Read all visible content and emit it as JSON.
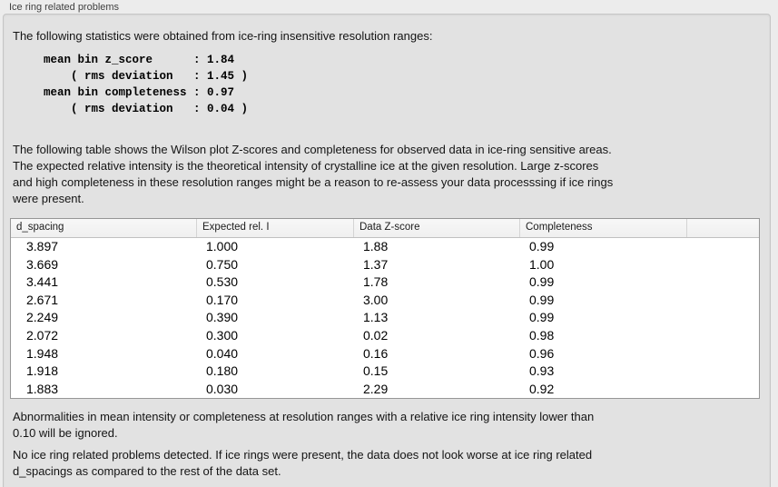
{
  "panel": {
    "title": "Ice ring related problems",
    "intro": "The following statistics were obtained from ice-ring insensitive resolution ranges:",
    "stats_block": "mean bin z_score      : 1.84\n    ( rms deviation   : 1.45 )\nmean bin completeness : 0.97\n    ( rms deviation   : 0.04 )",
    "table_note": "The following table shows the Wilson plot Z-scores and completeness for observed data in ice-ring sensitive areas.\nThe expected relative intensity is the theoretical intensity of crystalline ice at the given resolution. Large z-scores\nand high completeness in these resolution ranges might be a reason to re-assess your data processsing if ice rings\nwere present.",
    "ignore_note": "Abnormalities in mean intensity or completeness at resolution ranges with a relative ice ring intensity lower than\n0.10 will be ignored.",
    "conclusion": "No ice ring related problems detected. If ice rings were present, the data does not look worse at ice ring related\nd_spacings as compared to the rest of the data set."
  },
  "table": {
    "headers": [
      "d_spacing",
      "Expected rel. I",
      "Data Z-score",
      "Completeness",
      ""
    ],
    "rows": [
      [
        "3.897",
        "1.000",
        "1.88",
        "0.99"
      ],
      [
        "3.669",
        "0.750",
        "1.37",
        "1.00"
      ],
      [
        "3.441",
        "0.530",
        "1.78",
        "0.99"
      ],
      [
        "2.671",
        "0.170",
        "3.00",
        "0.99"
      ],
      [
        "2.249",
        "0.390",
        "1.13",
        "0.99"
      ],
      [
        "2.072",
        "0.300",
        "0.02",
        "0.98"
      ],
      [
        "1.948",
        "0.040",
        "0.16",
        "0.96"
      ],
      [
        "1.918",
        "0.180",
        "0.15",
        "0.93"
      ],
      [
        "1.883",
        "0.030",
        "2.29",
        "0.92"
      ]
    ]
  }
}
